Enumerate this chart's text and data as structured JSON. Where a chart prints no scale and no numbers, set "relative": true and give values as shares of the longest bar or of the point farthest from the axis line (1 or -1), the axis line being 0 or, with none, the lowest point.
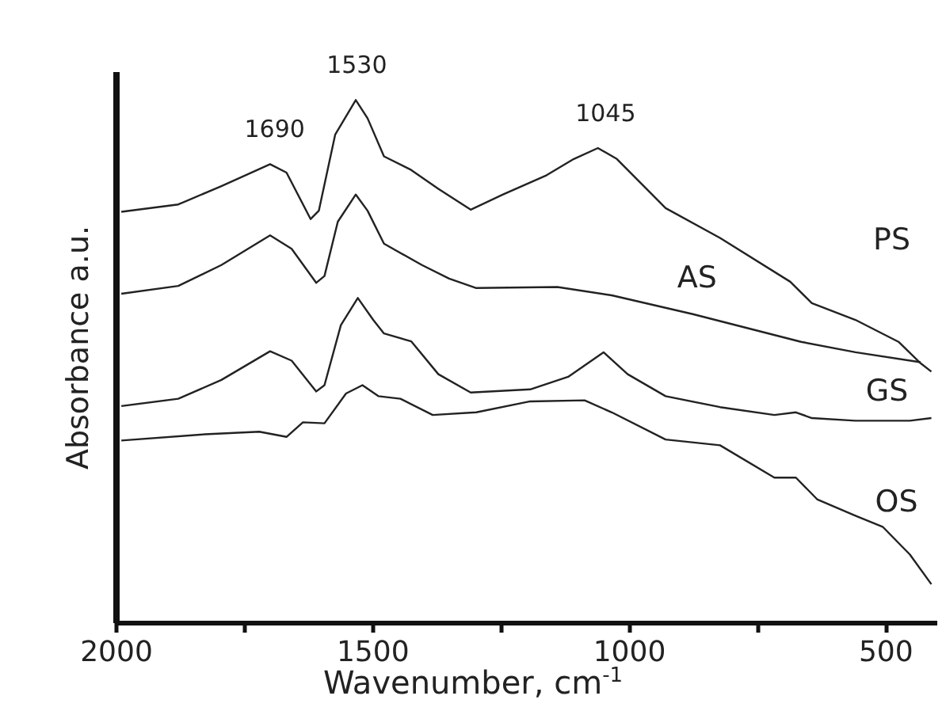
{
  "chart_data": {
    "type": "line",
    "relative": true,
    "xlabel": "Wavenumber, cm$^{-1}$",
    "ylabel": "Absorbance a.u.",
    "xlim": [
      2000,
      400
    ],
    "xticks": [
      2000,
      {
        "value": 1750,
        "label": null
      },
      1500,
      {
        "value": 1250,
        "label": null
      },
      1000,
      {
        "value": 750,
        "label": null
      },
      500
    ],
    "grid": false,
    "tick_labels": "x",
    "line_style": "solid",
    "marker": "none",
    "annotations": [
      {
        "text": "1690",
        "x": 1690,
        "y": 0.877
      },
      {
        "text": "1530",
        "x": 1530,
        "y": 1.0
      },
      {
        "text": "1045",
        "x": 1045,
        "y": 0.908
      }
    ],
    "series": [
      {
        "name": "PS",
        "color": "#222222",
        "x": [
          1989,
          1878,
          1794,
          1699,
          1667,
          1620,
          1604,
          1572,
          1532,
          1509,
          1477,
          1424,
          1371,
          1308,
          1245,
          1160,
          1107,
          1060,
          1023,
          928,
          822,
          685,
          643,
          558,
          474,
          431,
          410
        ],
        "values": [
          0.786,
          0.8,
          0.835,
          0.877,
          0.861,
          0.772,
          0.788,
          0.934,
          1.0,
          0.965,
          0.892,
          0.866,
          0.83,
          0.79,
          0.819,
          0.856,
          0.887,
          0.908,
          0.887,
          0.793,
          0.736,
          0.652,
          0.611,
          0.579,
          0.537,
          0.496,
          0.48
        ]
      },
      {
        "name": "AS",
        "color": "#222222",
        "x": [
          1989,
          1878,
          1794,
          1699,
          1657,
          1609,
          1593,
          1567,
          1532,
          1509,
          1477,
          1403,
          1350,
          1297,
          1139,
          1033,
          875,
          664,
          558,
          431
        ],
        "values": [
          0.629,
          0.644,
          0.684,
          0.741,
          0.715,
          0.65,
          0.663,
          0.767,
          0.819,
          0.788,
          0.725,
          0.684,
          0.658,
          0.64,
          0.642,
          0.626,
          0.59,
          0.537,
          0.517,
          0.498
        ]
      },
      {
        "name": "GS",
        "color": "#222222",
        "x": [
          1989,
          1878,
          1794,
          1699,
          1657,
          1609,
          1593,
          1561,
          1528,
          1498,
          1477,
          1424,
          1371,
          1308,
          1192,
          1118,
          1049,
          1002,
          928,
          822,
          716,
          674,
          643,
          558,
          452,
          410
        ],
        "values": [
          0.414,
          0.428,
          0.464,
          0.519,
          0.501,
          0.442,
          0.454,
          0.569,
          0.621,
          0.579,
          0.553,
          0.538,
          0.475,
          0.44,
          0.446,
          0.47,
          0.517,
          0.475,
          0.433,
          0.412,
          0.397,
          0.402,
          0.391,
          0.386,
          0.386,
          0.391
        ]
      },
      {
        "name": "OS",
        "color": "#222222",
        "x": [
          1989,
          1826,
          1720,
          1667,
          1635,
          1593,
          1551,
          1519,
          1488,
          1445,
          1382,
          1297,
          1192,
          1086,
          1033,
          928,
          822,
          716,
          674,
          632,
          558,
          505,
          452,
          410
        ],
        "values": [
          0.348,
          0.36,
          0.365,
          0.355,
          0.383,
          0.381,
          0.438,
          0.454,
          0.433,
          0.428,
          0.397,
          0.402,
          0.423,
          0.425,
          0.402,
          0.35,
          0.339,
          0.277,
          0.277,
          0.235,
          0.204,
          0.183,
          0.13,
          0.073
        ]
      }
    ]
  }
}
